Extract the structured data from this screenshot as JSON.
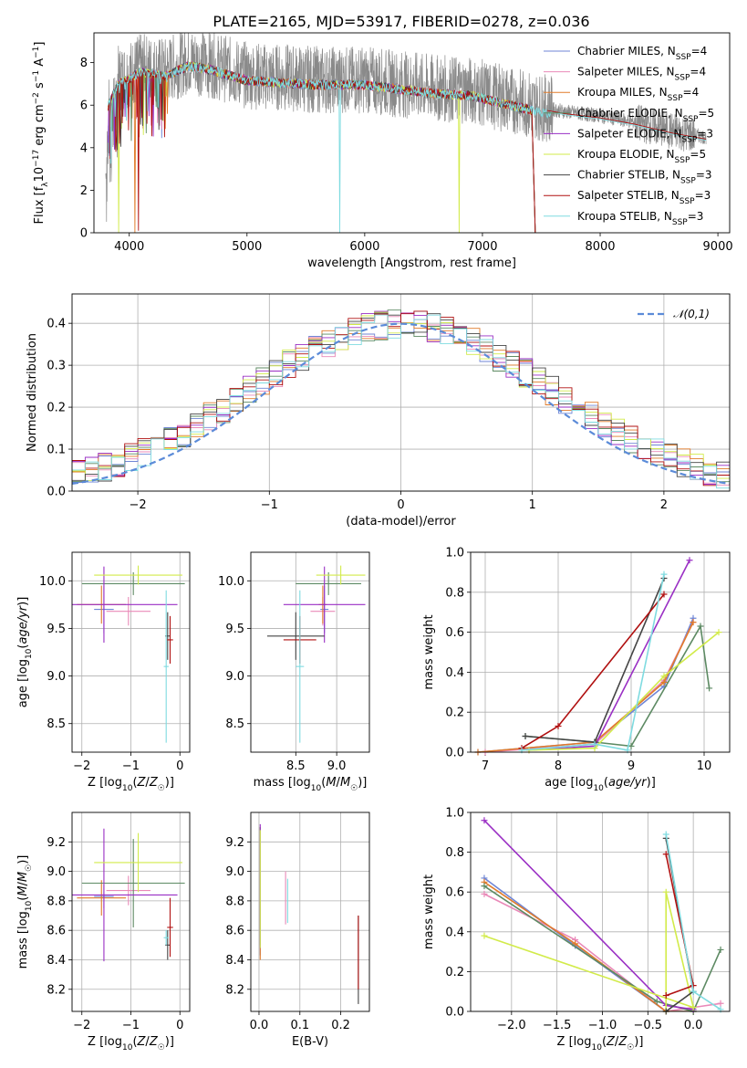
{
  "title": "PLATE=2165, MJD=53917, FIBERID=0278, z=0.036",
  "models": [
    {
      "name": "Chabrier MILES",
      "n": "4",
      "color": "#6f86d6"
    },
    {
      "name": "Salpeter MILES",
      "n": "4",
      "color": "#e989b8"
    },
    {
      "name": "Kroupa MILES",
      "n": "4",
      "color": "#e07b2a"
    },
    {
      "name": "Chabrier ELODIE",
      "n": "5",
      "color": "#5d8a63"
    },
    {
      "name": "Salpeter ELODIE",
      "n": "3",
      "color": "#9a2fc4"
    },
    {
      "name": "Kroupa ELODIE",
      "n": "5",
      "color": "#d2eb4a"
    },
    {
      "name": "Chabrier STELIB",
      "n": "3",
      "color": "#444444"
    },
    {
      "name": "Salpeter STELIB",
      "n": "3",
      "color": "#b01010"
    },
    {
      "name": "Kroupa STELIB",
      "n": "3",
      "color": "#7fdbe0"
    }
  ],
  "chart_data": [
    {
      "id": "spectrum",
      "type": "line",
      "xlabel": "wavelength [Angstrom, rest frame]",
      "ylabel": "Flux [f_λ 10^-17 erg cm^-2 s^-1 A^-1]",
      "xlim": [
        3700,
        9100
      ],
      "ylim": [
        0,
        9.4
      ],
      "xticks": [
        4000,
        5000,
        6000,
        7000,
        8000,
        9000
      ],
      "yticks": [
        0,
        2,
        4,
        6,
        8
      ],
      "continuum": {
        "x": [
          3820,
          3900,
          4000,
          4100,
          4300,
          4500,
          4700,
          5000,
          5300,
          5600,
          6000,
          6300,
          6600,
          6900,
          7200,
          7500,
          7700,
          8000,
          8300,
          8600,
          8900
        ],
        "y": [
          6.2,
          7.2,
          7.5,
          7.8,
          7.6,
          8.1,
          7.9,
          7.4,
          7.3,
          7.2,
          7.2,
          7.0,
          6.8,
          6.7,
          6.3,
          5.9,
          5.7,
          5.5,
          5.2,
          4.8,
          4.5
        ]
      },
      "data_range": [
        3800,
        8900
      ],
      "model_range": [
        3820,
        7450
      ],
      "legend": "top-right"
    },
    {
      "id": "residuals",
      "type": "histogram",
      "xlabel": "(data-model)/error",
      "ylabel": "Normed distribution",
      "xlim": [
        -2.5,
        2.5
      ],
      "ylim": [
        0,
        0.47
      ],
      "xticks": [
        -2,
        -1,
        0,
        1,
        2
      ],
      "yticks": [
        0.0,
        0.1,
        0.2,
        0.3,
        0.4
      ],
      "bin_width": 0.1,
      "reference": {
        "name": "𝒩(0,1)",
        "mean": 0,
        "sigma": 1
      },
      "legend": "top-right"
    },
    {
      "id": "age_vs_Z",
      "type": "scatter",
      "xlabel": "Z [log10(Z/Z☉)]",
      "ylabel": "age [log10(age/yr)]",
      "xlim": [
        -2.2,
        0.2
      ],
      "ylim": [
        8.2,
        10.3
      ],
      "xticks": [
        -2,
        -1,
        0
      ],
      "yticks": [
        8.5,
        9.0,
        9.5,
        10.0
      ],
      "points": [
        {
          "m": 0,
          "x": -1.55,
          "xe": 0.2,
          "y": 9.7,
          "ye": 0.25
        },
        {
          "m": 1,
          "x": -1.05,
          "xe": 0.45,
          "y": 9.68,
          "ye": 0.15
        },
        {
          "m": 2,
          "x": -1.6,
          "xe": 0.5,
          "y": 9.75,
          "ye": 0.2
        },
        {
          "m": 3,
          "x": -0.95,
          "xe": 1.05,
          "y": 9.97,
          "ye": 0.12
        },
        {
          "m": 4,
          "x": -1.55,
          "xe": 1.5,
          "y": 9.75,
          "ye": 0.4
        },
        {
          "m": 5,
          "x": -0.85,
          "xe": 0.9,
          "y": 10.06,
          "ye": 0.1
        },
        {
          "m": 6,
          "x": -0.25,
          "xe": 0.05,
          "y": 9.42,
          "ye": 0.25
        },
        {
          "m": 7,
          "x": -0.2,
          "xe": 0.06,
          "y": 9.38,
          "ye": 0.25
        },
        {
          "m": 8,
          "x": -0.28,
          "xe": 0.05,
          "y": 9.1,
          "ye": 0.8
        }
      ]
    },
    {
      "id": "age_vs_mass",
      "type": "scatter",
      "xlabel": "mass [log10(M/M☉)]",
      "ylabel": "",
      "xlim": [
        7.95,
        9.4
      ],
      "ylim": [
        8.2,
        10.3
      ],
      "xticks": [
        8.5,
        9.0
      ],
      "yticks": [
        8.5,
        9.0,
        9.5,
        10.0
      ],
      "points": [
        {
          "m": 0,
          "x": 8.85,
          "xe": 0.05,
          "y": 9.7,
          "ye": 0.25
        },
        {
          "m": 1,
          "x": 8.83,
          "xe": 0.15,
          "y": 9.68,
          "ye": 0.15
        },
        {
          "m": 2,
          "x": 8.83,
          "xe": 0.05,
          "y": 9.75,
          "ye": 0.2
        },
        {
          "m": 3,
          "x": 8.9,
          "xe": 0.4,
          "y": 9.97,
          "ye": 0.12
        },
        {
          "m": 4,
          "x": 8.85,
          "xe": 0.5,
          "y": 9.75,
          "ye": 0.4
        },
        {
          "m": 5,
          "x": 9.05,
          "xe": 0.3,
          "y": 10.06,
          "ye": 0.1
        },
        {
          "m": 6,
          "x": 8.5,
          "xe": 0.35,
          "y": 9.42,
          "ye": 0.25
        },
        {
          "m": 7,
          "x": 8.55,
          "xe": 0.2,
          "y": 9.38,
          "ye": 0.25
        },
        {
          "m": 8,
          "x": 8.55,
          "xe": 0.05,
          "y": 9.1,
          "ye": 0.8
        }
      ]
    },
    {
      "id": "massweight_vs_age",
      "type": "line",
      "xlabel": "age [log10(age/yr)]",
      "ylabel": "mass weight",
      "xlim": [
        6.8,
        10.35
      ],
      "ylim": [
        0,
        1
      ],
      "xticks": [
        7,
        8,
        9,
        10
      ],
      "yticks": [
        0.0,
        0.2,
        0.4,
        0.6,
        0.8,
        1.0
      ],
      "series": [
        {
          "m": 0,
          "x": [
            6.9,
            8.5,
            9.45,
            9.85
          ],
          "y": [
            0.0,
            0.05,
            0.33,
            0.67
          ]
        },
        {
          "m": 1,
          "x": [
            7.0,
            8.5,
            9.45,
            9.85
          ],
          "y": [
            0.0,
            0.04,
            0.36,
            0.65
          ]
        },
        {
          "m": 2,
          "x": [
            6.9,
            8.5,
            9.45,
            9.85
          ],
          "y": [
            0.0,
            0.05,
            0.35,
            0.65
          ]
        },
        {
          "m": 3,
          "x": [
            7.55,
            8.5,
            9.0,
            9.95,
            10.07
          ],
          "y": [
            0.08,
            0.05,
            0.03,
            0.63,
            0.32
          ]
        },
        {
          "m": 4,
          "x": [
            7.6,
            8.5,
            9.8
          ],
          "y": [
            0.01,
            0.03,
            0.96
          ]
        },
        {
          "m": 5,
          "x": [
            7.6,
            8.5,
            9.45,
            10.2
          ],
          "y": [
            0.01,
            0.02,
            0.38,
            0.6
          ]
        },
        {
          "m": 6,
          "x": [
            7.55,
            8.5,
            9.45
          ],
          "y": [
            0.08,
            0.05,
            0.87
          ]
        },
        {
          "m": 7,
          "x": [
            7.5,
            8.0,
            9.45
          ],
          "y": [
            0.02,
            0.13,
            0.79
          ]
        },
        {
          "m": 8,
          "x": [
            7.5,
            8.5,
            8.95,
            9.45
          ],
          "y": [
            0.01,
            0.04,
            0.01,
            0.89
          ]
        }
      ]
    },
    {
      "id": "mass_vs_Z",
      "type": "scatter",
      "xlabel": "Z [log10(Z/Z☉)]",
      "ylabel": "mass [log10(M/M☉)]",
      "xlim": [
        -2.2,
        0.2
      ],
      "ylim": [
        8.05,
        9.4
      ],
      "xticks": [
        -2,
        -1,
        0
      ],
      "yticks": [
        8.2,
        8.4,
        8.6,
        8.8,
        9.0,
        9.2
      ],
      "points": [
        {
          "m": 0,
          "x": -1.55,
          "xe": 0.2,
          "y": 8.83,
          "ye": 0.08
        },
        {
          "m": 1,
          "x": -1.05,
          "xe": 0.45,
          "y": 8.87,
          "ye": 0.1
        },
        {
          "m": 2,
          "x": -1.6,
          "xe": 0.5,
          "y": 8.82,
          "ye": 0.12
        },
        {
          "m": 3,
          "x": -0.95,
          "xe": 1.05,
          "y": 8.92,
          "ye": 0.3
        },
        {
          "m": 4,
          "x": -1.55,
          "xe": 1.5,
          "y": 8.84,
          "ye": 0.45
        },
        {
          "m": 5,
          "x": -0.85,
          "xe": 0.9,
          "y": 9.06,
          "ye": 0.2
        },
        {
          "m": 6,
          "x": -0.25,
          "xe": 0.05,
          "y": 8.5,
          "ye": 0.1
        },
        {
          "m": 7,
          "x": -0.2,
          "xe": 0.06,
          "y": 8.62,
          "ye": 0.2
        },
        {
          "m": 8,
          "x": -0.28,
          "xe": 0.05,
          "y": 8.55,
          "ye": 0.05
        }
      ]
    },
    {
      "id": "mass_vs_ebv",
      "type": "scatter",
      "xlabel": "E(B-V)",
      "ylabel": "",
      "xlim": [
        -0.02,
        0.27
      ],
      "ylim": [
        8.05,
        9.4
      ],
      "xticks": [
        0.0,
        0.1,
        0.2
      ],
      "yticks": [
        8.2,
        8.4,
        8.6,
        8.8,
        9.0,
        9.2
      ],
      "points": [
        {
          "m": 0,
          "x": 0.003,
          "xe": 0,
          "y": 8.83,
          "ye": 0.4
        },
        {
          "m": 1,
          "x": 0.065,
          "xe": 0,
          "y": 8.82,
          "ye": 0.18
        },
        {
          "m": 2,
          "x": 0.003,
          "xe": 0,
          "y": 8.85,
          "ye": 0.45
        },
        {
          "m": 3,
          "x": 0.003,
          "xe": 0,
          "y": 8.9,
          "ye": 0.4
        },
        {
          "m": 4,
          "x": 0.003,
          "xe": 0,
          "y": 8.9,
          "ye": 0.42
        },
        {
          "m": 5,
          "x": 0.003,
          "xe": 0,
          "y": 8.88,
          "ye": 0.4
        },
        {
          "m": 6,
          "x": 0.243,
          "xe": 0,
          "y": 8.4,
          "ye": 0.3
        },
        {
          "m": 7,
          "x": 0.243,
          "xe": 0,
          "y": 8.45,
          "ye": 0.25
        },
        {
          "m": 8,
          "x": 0.07,
          "xe": 0,
          "y": 8.8,
          "ye": 0.15
        }
      ]
    },
    {
      "id": "massweight_vs_Z",
      "type": "line",
      "xlabel": "Z [log10(Z/Z☉)]",
      "ylabel": "mass weight",
      "xlim": [
        -2.45,
        0.4
      ],
      "ylim": [
        0,
        1
      ],
      "xticks": [
        -2.0,
        -1.5,
        -1.0,
        -0.5,
        0.0
      ],
      "yticks": [
        0.0,
        0.2,
        0.4,
        0.6,
        0.8,
        1.0
      ],
      "series": [
        {
          "m": 0,
          "x": [
            -2.3,
            -1.3,
            -0.3,
            0.0
          ],
          "y": [
            0.67,
            0.33,
            0.0,
            0.0
          ]
        },
        {
          "m": 1,
          "x": [
            -2.3,
            -1.3,
            -0.3,
            0.3
          ],
          "y": [
            0.59,
            0.36,
            0.0,
            0.04
          ]
        },
        {
          "m": 2,
          "x": [
            -2.3,
            -1.3,
            -0.3,
            0.0
          ],
          "y": [
            0.65,
            0.34,
            0.0,
            0.0
          ]
        },
        {
          "m": 3,
          "x": [
            -2.3,
            -0.4,
            0.0,
            0.3
          ],
          "y": [
            0.63,
            0.05,
            0.0,
            0.31
          ]
        },
        {
          "m": 4,
          "x": [
            -2.3,
            -0.3,
            0.0
          ],
          "y": [
            0.96,
            0.03,
            0.01
          ]
        },
        {
          "m": 5,
          "x": [
            -2.3,
            0.0,
            -0.3,
            -0.3
          ],
          "y": [
            0.38,
            0.02,
            0.6,
            0.0
          ]
        },
        {
          "m": 6,
          "x": [
            -0.3,
            0.0,
            -0.3
          ],
          "y": [
            0.87,
            0.1,
            0.0
          ]
        },
        {
          "m": 7,
          "x": [
            -0.3,
            0.0,
            -0.3
          ],
          "y": [
            0.79,
            0.13,
            0.08
          ]
        },
        {
          "m": 8,
          "x": [
            -0.3,
            0.0,
            0.3
          ],
          "y": [
            0.89,
            0.1,
            0.01
          ]
        }
      ]
    }
  ]
}
